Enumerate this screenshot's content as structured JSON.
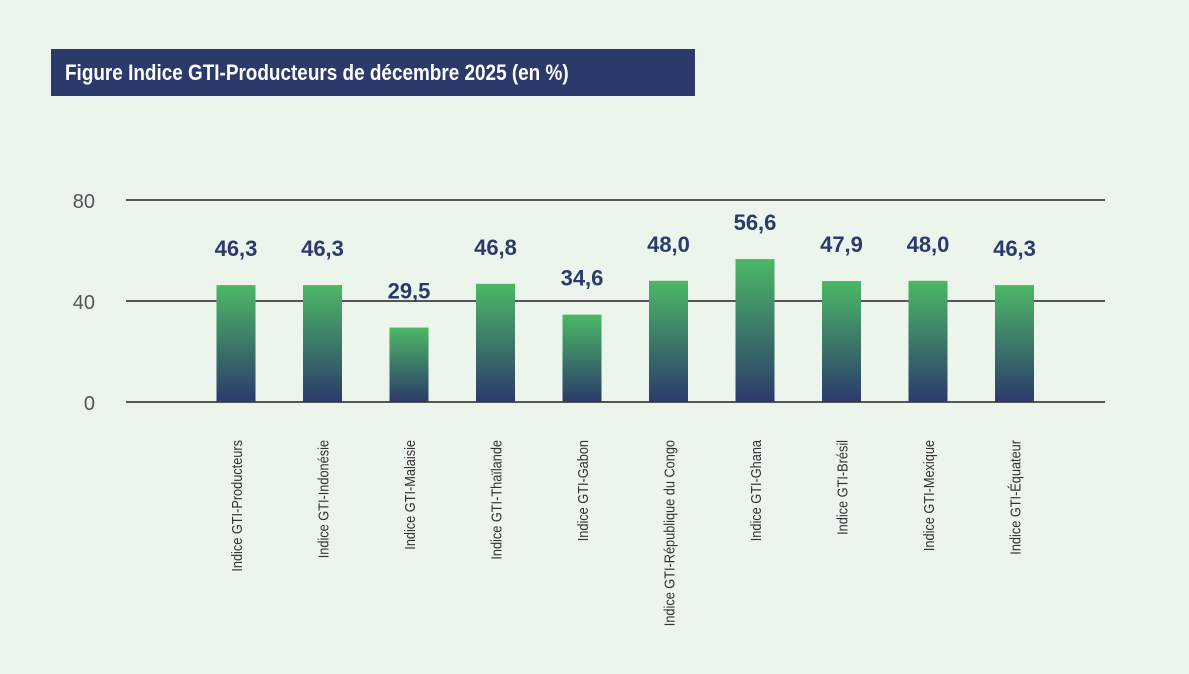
{
  "chart_data": {
    "type": "bar",
    "title": "Figure Indice GTI-Producteurs  de décembre 2025 (en %)",
    "categories": [
      "Indice GTI-Producteurs",
      "Indice GTI-Indonésie",
      "Indice GTI-Malaisie",
      "Indice GTI-Thaïlande",
      "Indice GTI-Gabon",
      "Indice GTI-République du Congo",
      "Indice GTI-Ghana",
      "Indice GTI-Brésil",
      "Indice GTI-Mexique",
      "Indice GTI-Équateur"
    ],
    "values": [
      46.3,
      46.3,
      29.5,
      46.8,
      34.6,
      48.0,
      56.6,
      47.9,
      48.0,
      46.3
    ],
    "data_labels": [
      "46,3",
      "46,3",
      "29,5",
      "46,8",
      "34,6",
      "48,0",
      "56,6",
      "47,9",
      "48,0",
      "46,3"
    ],
    "yticks": [
      "0",
      "40",
      "80"
    ],
    "ytick_values": [
      0,
      40,
      80
    ],
    "ylim": [
      0,
      80
    ],
    "grid": true,
    "colors": {
      "bar_top": "#4cb866",
      "bar_bottom": "#2b3a6b",
      "title_bg": "#2b3a6b",
      "label": "#2b3a6b"
    }
  }
}
